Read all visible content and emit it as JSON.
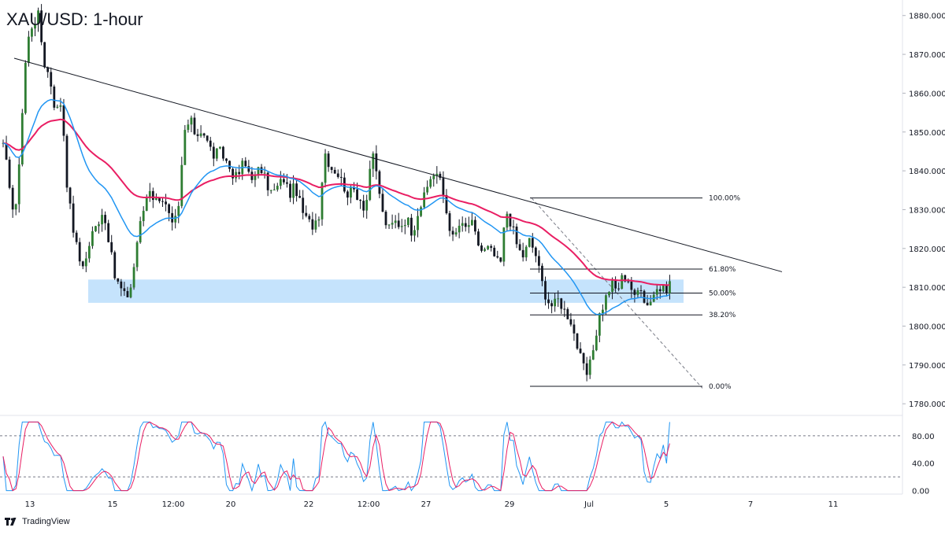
{
  "chart_data": {
    "type": "candlestick",
    "title": "XAU/USD: 1-hour",
    "x_ticks": [
      "13",
      "15",
      "12:00",
      "20",
      "22",
      "12:00",
      "27",
      "29",
      "Jul",
      "5",
      "7",
      "11"
    ],
    "price_axis": {
      "ylim": [
        1777,
        1884
      ],
      "ticks": [
        "1880.000",
        "1870.000",
        "1860.000",
        "1850.000",
        "1840.000",
        "1830.000",
        "1820.000",
        "1810.000",
        "1800.000",
        "1790.000",
        "1780.000"
      ]
    },
    "oscillator_axis": {
      "ylim": [
        -5,
        105
      ],
      "ticks": [
        "80.00",
        "40.00",
        "0.00"
      ],
      "bands": [
        80,
        20
      ]
    },
    "fibonacci": {
      "high": 1833,
      "low": 1784,
      "levels": [
        {
          "label": "100.00%",
          "price": 1833
        },
        {
          "label": "61.80%",
          "price": 1814.7
        },
        {
          "label": "50.00%",
          "price": 1808.5
        },
        {
          "label": "38.20%",
          "price": 1802.9
        },
        {
          "label": "0.00%",
          "price": 1784.5
        }
      ]
    },
    "support_zone": {
      "low": 1806,
      "high": 1812
    },
    "trendline": {
      "start": 1869,
      "end": 1814
    },
    "colors": {
      "up": "#2e7d32",
      "down": "#131722",
      "ma_fast": "#2196f3",
      "ma_slow": "#e91e63",
      "zone": "#bbdefb",
      "k_line": "#2196f3",
      "d_line": "#e91e63"
    },
    "close_path": [
      1846,
      1838,
      1826,
      1849,
      1872,
      1878,
      1880,
      1868,
      1864,
      1855,
      1858,
      1835,
      1825,
      1817,
      1816,
      1823,
      1826,
      1830,
      1823,
      1813,
      1810,
      1807,
      1811,
      1823,
      1830,
      1836,
      1832,
      1834,
      1830,
      1825,
      1830,
      1850,
      1853,
      1849,
      1851,
      1847,
      1844,
      1845,
      1843,
      1840,
      1838,
      1842,
      1840,
      1838,
      1841,
      1837,
      1834,
      1836,
      1838,
      1834,
      1836,
      1830,
      1827,
      1826,
      1829,
      1845,
      1841,
      1840,
      1837,
      1834,
      1835,
      1833,
      1830,
      1845,
      1838,
      1828,
      1825,
      1827,
      1826,
      1828,
      1824,
      1830,
      1833,
      1838,
      1840,
      1836,
      1828,
      1822,
      1826,
      1825,
      1827,
      1822,
      1819,
      1820,
      1818,
      1815,
      1830,
      1826,
      1820,
      1818,
      1822,
      1819,
      1812,
      1807,
      1805,
      1807,
      1804,
      1802,
      1796,
      1790,
      1787,
      1795,
      1803,
      1807,
      1811,
      1809,
      1813,
      1812,
      1807,
      1811,
      1805,
      1808,
      1810,
      1809,
      1811
    ]
  },
  "branding": {
    "name": "TradingView"
  }
}
